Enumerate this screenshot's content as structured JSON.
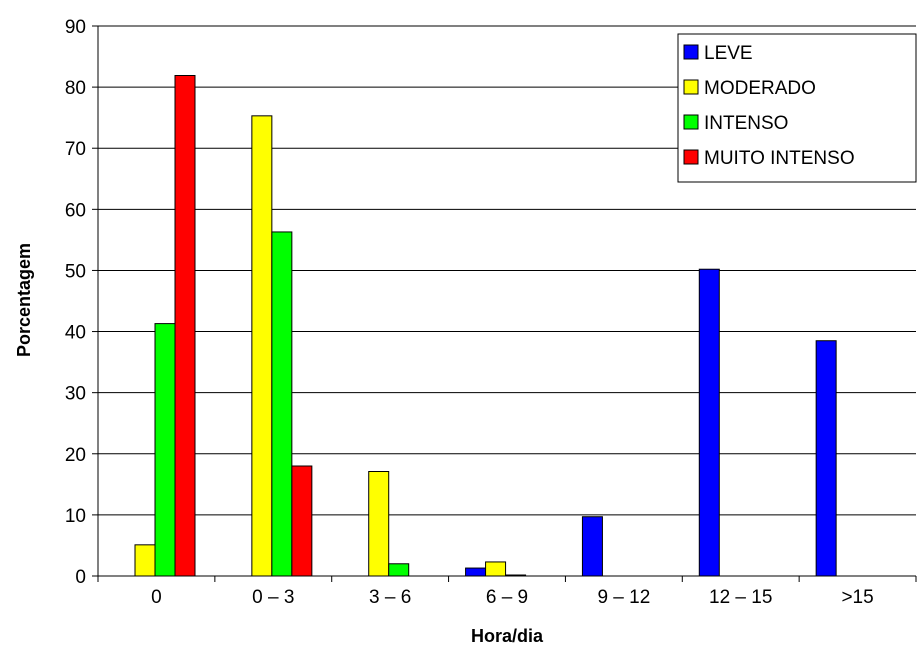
{
  "chart_data": {
    "type": "bar",
    "xlabel": "Hora/dia",
    "ylabel": "Porcentagem",
    "ylim": [
      0,
      90
    ],
    "yticks": [
      0,
      10,
      20,
      30,
      40,
      50,
      60,
      70,
      80,
      90
    ],
    "grid": true,
    "legend_position": "top-right",
    "categories": [
      "0",
      "0 – 3",
      "3 – 6",
      "6 – 9",
      "9 – 12",
      "12 – 15",
      ">15"
    ],
    "series": [
      {
        "name": "LEVE",
        "color": "#0000FF",
        "values": [
          0,
          0,
          0,
          1.3,
          9.7,
          50.2,
          38.5
        ]
      },
      {
        "name": "MODERADO",
        "color": "#FFFF00",
        "values": [
          5.1,
          75.3,
          17.1,
          2.3,
          0,
          0,
          0
        ]
      },
      {
        "name": "INTENSO",
        "color": "#00FF00",
        "values": [
          41.3,
          56.3,
          2.0,
          0.15,
          0,
          0,
          0
        ]
      },
      {
        "name": "MUITO INTENSO",
        "color": "#FF0000",
        "values": [
          81.9,
          18.0,
          0,
          0,
          0,
          0,
          0
        ]
      }
    ]
  }
}
